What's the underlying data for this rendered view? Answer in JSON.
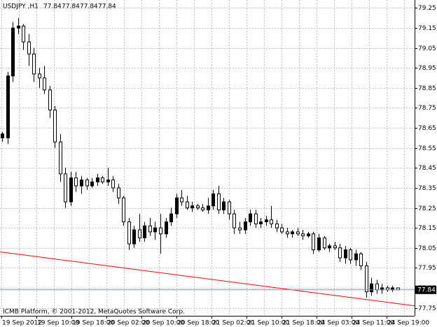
{
  "chart_data": {
    "type": "candlestick",
    "title": "USDJPY ,H1",
    "header_prices": [
      77.84,
      77.84,
      77.84,
      77.84
    ],
    "footer": "ICMB Platform, © 2001-2012, MetaQuotes Software Corp.",
    "x_labels": [
      "19 Sep 2012",
      "19 Sep 10:00",
      "19 Sep 18:00",
      "20 Sep 02:00",
      "20 Sep 10:00",
      "20 Sep 18:00",
      "21 Sep 02:00",
      "21 Sep 10:00",
      "21 Sep 18:00",
      "24 Sep 03:00",
      "24 Sep 11:00",
      "24 Sep 19:00"
    ],
    "ylim": [
      77.71,
      79.29
    ],
    "yticks": [
      79.25,
      79.15,
      79.05,
      78.95,
      78.85,
      78.75,
      78.65,
      78.55,
      78.45,
      78.35,
      78.25,
      78.15,
      78.05,
      77.95,
      77.85,
      77.75
    ],
    "grid": true,
    "up_color": "#000000",
    "down_color": "#ffffff",
    "open": [
      78.6,
      78.6,
      78.91,
      79.15,
      79.16,
      79.08,
      79.02,
      78.92,
      78.9,
      78.84,
      78.74,
      78.58,
      78.42,
      78.28,
      78.4,
      78.36,
      78.39,
      78.36,
      78.38,
      78.4,
      78.38,
      78.39,
      78.35,
      78.3,
      78.18,
      78.07,
      78.14,
      78.1,
      78.16,
      78.13,
      78.15,
      78.12,
      78.18,
      78.22,
      78.3,
      78.28,
      78.25,
      78.26,
      78.25,
      78.24,
      78.26,
      78.32,
      78.24,
      78.28,
      78.22,
      78.15,
      78.14,
      78.18,
      78.22,
      78.17,
      78.18,
      78.19,
      78.17,
      78.15,
      78.13,
      78.12,
      78.13,
      78.12,
      78.11,
      78.12,
      78.04,
      78.1,
      78.05,
      78.06,
      78.05,
      78.0,
      78.04,
      77.99,
      78.02,
      77.96,
      77.83,
      77.87,
      77.84,
      77.85,
      77.84,
      77.85
    ],
    "high": [
      78.63,
      78.93,
      79.18,
      79.2,
      79.17,
      79.12,
      79.05,
      78.95,
      78.96,
      78.86,
      78.76,
      78.62,
      78.45,
      78.43,
      78.43,
      78.41,
      78.4,
      78.4,
      78.42,
      78.41,
      78.45,
      78.41,
      78.37,
      78.31,
      78.2,
      78.16,
      78.22,
      78.18,
      78.2,
      78.18,
      78.22,
      78.2,
      78.25,
      78.32,
      78.34,
      78.31,
      78.28,
      78.27,
      78.27,
      78.3,
      78.34,
      78.36,
      78.3,
      78.29,
      78.24,
      78.18,
      78.2,
      78.24,
      78.24,
      78.2,
      78.21,
      78.26,
      78.19,
      78.17,
      78.15,
      78.14,
      78.15,
      78.14,
      78.13,
      78.13,
      78.12,
      78.11,
      78.07,
      78.08,
      78.07,
      78.06,
      78.05,
      78.04,
      78.03,
      77.98,
      77.9,
      77.89,
      77.87,
      77.86,
      77.86,
      77.85
    ],
    "low": [
      78.58,
      78.57,
      78.88,
      79.12,
      79.04,
      78.96,
      78.88,
      78.85,
      78.82,
      78.7,
      78.55,
      78.38,
      78.25,
      78.26,
      78.33,
      78.32,
      78.34,
      78.35,
      78.36,
      78.37,
      78.36,
      78.33,
      78.27,
      78.16,
      78.04,
      78.05,
      78.08,
      78.08,
      78.11,
      78.09,
      78.02,
      78.1,
      78.16,
      78.2,
      78.26,
      78.24,
      78.23,
      78.24,
      78.23,
      78.22,
      78.24,
      78.22,
      78.22,
      78.19,
      78.12,
      78.12,
      78.12,
      78.16,
      78.15,
      78.15,
      78.16,
      78.15,
      78.13,
      78.12,
      78.1,
      78.1,
      78.11,
      78.09,
      78.1,
      78.02,
      78.03,
      78.04,
      78.03,
      78.04,
      77.98,
      77.97,
      77.97,
      77.96,
      77.94,
      77.8,
      77.81,
      77.82,
      77.82,
      77.83,
      77.83,
      77.84
    ],
    "close": [
      78.62,
      78.91,
      79.15,
      79.16,
      79.08,
      79.02,
      78.92,
      78.9,
      78.84,
      78.74,
      78.58,
      78.42,
      78.28,
      78.4,
      78.36,
      78.39,
      78.36,
      78.38,
      78.4,
      78.38,
      78.39,
      78.35,
      78.3,
      78.18,
      78.07,
      78.14,
      78.1,
      78.16,
      78.13,
      78.15,
      78.12,
      78.18,
      78.22,
      78.3,
      78.28,
      78.25,
      78.26,
      78.25,
      78.24,
      78.26,
      78.32,
      78.24,
      78.28,
      78.22,
      78.15,
      78.14,
      78.18,
      78.22,
      78.17,
      78.18,
      78.19,
      78.17,
      78.15,
      78.13,
      78.12,
      78.13,
      78.12,
      78.11,
      78.12,
      78.04,
      78.1,
      78.05,
      78.06,
      78.05,
      78.0,
      78.04,
      77.99,
      78.02,
      77.96,
      77.83,
      77.87,
      77.84,
      77.85,
      77.84,
      77.85,
      77.84
    ],
    "trend_line": {
      "values": [
        78.03,
        77.76
      ],
      "color": "#ff0000"
    },
    "last_price": 77.84,
    "last_price_color": "#8090b0"
  }
}
